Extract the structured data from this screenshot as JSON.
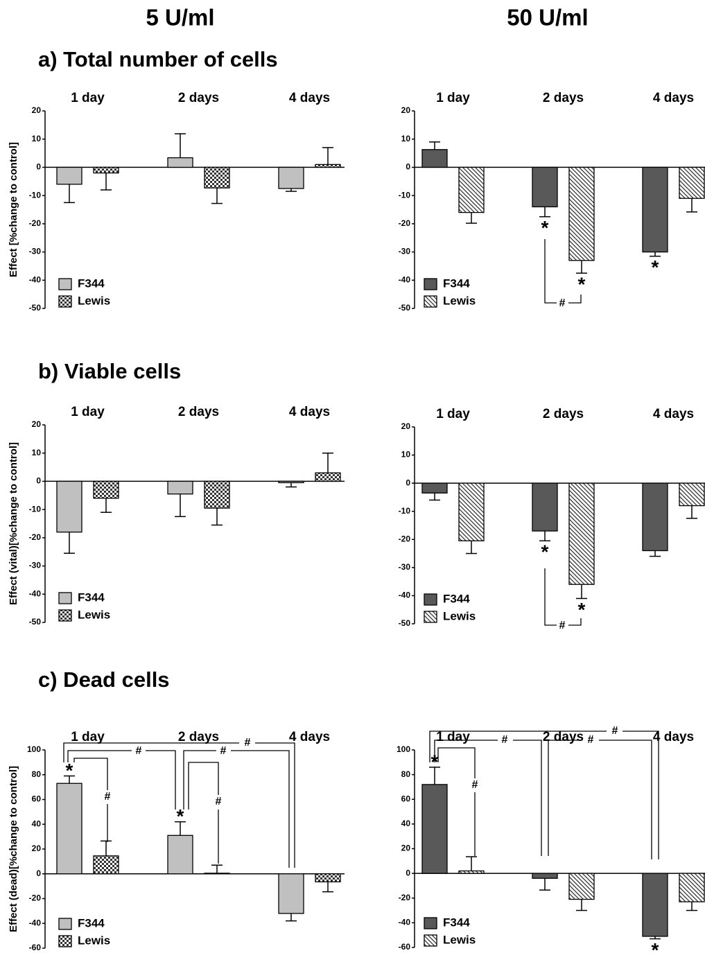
{
  "columns": [
    "5 U/ml",
    "50 U/ml"
  ],
  "sections": [
    "a) Total number of cells",
    "b) Viable cells",
    "c) Dead cells"
  ],
  "chart_data": [
    {
      "type": "bar",
      "ylabel": "Effect [%change to control]",
      "categories": [
        "1 day",
        "2 days",
        "4 days"
      ],
      "series": [
        {
          "name": "F344",
          "color": "#c0c0c0",
          "values": [
            -6,
            3.4,
            -7.5
          ],
          "errors": [
            6.5,
            8.5,
            1
          ]
        },
        {
          "name": "Lewis",
          "color": "#333333",
          "pattern": "checker",
          "values": [
            -2,
            -7.3,
            1
          ],
          "errors": [
            6,
            5.5,
            6
          ]
        }
      ],
      "ylim": [
        -50,
        20
      ],
      "yticks": [
        20,
        10,
        0,
        -10,
        -20,
        -30,
        -40,
        -50
      ],
      "legend": "lower left"
    },
    {
      "type": "bar",
      "categories": [
        "1 day",
        "2 days",
        "4 days"
      ],
      "series": [
        {
          "name": "F344",
          "color": "#595959",
          "values": [
            6.3,
            -14,
            -30
          ],
          "errors": [
            2.7,
            3.5,
            1.5
          ],
          "significance": [
            null,
            "*",
            "*"
          ]
        },
        {
          "name": "Lewis",
          "color": "#333333",
          "pattern": "hatch",
          "values": [
            -16,
            -33,
            -11
          ],
          "errors": [
            3.8,
            4.5,
            4.8
          ],
          "significance": [
            null,
            "*",
            null
          ]
        }
      ],
      "comparisons": [
        "#"
      ],
      "ylim": [
        -50,
        20
      ],
      "yticks": [
        20,
        10,
        0,
        -10,
        -20,
        -30,
        -40,
        -50
      ],
      "legend": "lower left"
    },
    {
      "type": "bar",
      "ylabel": "Effect (vital)[%change to control]",
      "categories": [
        "1 day",
        "2 days",
        "4 days"
      ],
      "series": [
        {
          "name": "F344",
          "color": "#c0c0c0",
          "values": [
            -18,
            -4.5,
            -0.5
          ],
          "errors": [
            7.5,
            8,
            1.5
          ]
        },
        {
          "name": "Lewis",
          "color": "#333333",
          "pattern": "checker",
          "values": [
            -6,
            -9.5,
            3
          ],
          "errors": [
            5,
            6,
            7
          ]
        }
      ],
      "ylim": [
        -50,
        20
      ],
      "yticks": [
        20,
        10,
        0,
        -10,
        -20,
        -30,
        -40,
        -50
      ],
      "legend": "lower left"
    },
    {
      "type": "bar",
      "categories": [
        "1 day",
        "2 days",
        "4 days"
      ],
      "series": [
        {
          "name": "F344",
          "color": "#595959",
          "values": [
            -3.5,
            -17,
            -24
          ],
          "errors": [
            2.5,
            3.5,
            2
          ],
          "significance": [
            null,
            "*",
            null
          ]
        },
        {
          "name": "Lewis",
          "color": "#333333",
          "pattern": "hatch",
          "values": [
            -20.5,
            -36,
            -8
          ],
          "errors": [
            4.5,
            5,
            4.5
          ],
          "significance": [
            null,
            "*",
            null
          ]
        }
      ],
      "comparisons": [
        "#"
      ],
      "ylim": [
        -50,
        20
      ],
      "yticks": [
        20,
        10,
        0,
        -10,
        -20,
        -30,
        -40,
        -50
      ],
      "legend": "lower left"
    },
    {
      "type": "bar",
      "ylabel": "Effect (dead)[%change to control]",
      "categories": [
        "1 day",
        "2 days",
        "4 days"
      ],
      "series": [
        {
          "name": "F344",
          "color": "#c0c0c0",
          "values": [
            73,
            31,
            -32
          ],
          "errors": [
            6,
            11,
            6
          ],
          "significance": [
            "*",
            "*",
            null
          ]
        },
        {
          "name": "Lewis",
          "color": "#333333",
          "pattern": "checker",
          "values": [
            14.5,
            0.5,
            -6.5
          ],
          "errors": [
            12,
            6.5,
            8
          ]
        }
      ],
      "comparisons": [
        "#",
        "#",
        "#",
        "#",
        "#"
      ],
      "ylim": [
        -60,
        100
      ],
      "yticks": [
        100,
        80,
        60,
        40,
        20,
        0,
        -20,
        -40,
        -60
      ],
      "legend": "lower left"
    },
    {
      "type": "bar",
      "categories": [
        "1 day",
        "2 days",
        "4 days"
      ],
      "series": [
        {
          "name": "F344",
          "color": "#595959",
          "values": [
            72,
            -4,
            -51
          ],
          "errors": [
            14,
            9.5,
            2
          ],
          "significance": [
            "*",
            null,
            "*"
          ]
        },
        {
          "name": "Lewis",
          "color": "#333333",
          "pattern": "hatch",
          "values": [
            2,
            -21,
            -23
          ],
          "errors": [
            11.5,
            9,
            7
          ]
        }
      ],
      "comparisons": [
        "#",
        "#",
        "#",
        "#"
      ],
      "ylim": [
        -60,
        100
      ],
      "yticks": [
        100,
        80,
        60,
        40,
        20,
        0,
        -20,
        -40,
        -60
      ],
      "legend": "lower left"
    }
  ]
}
